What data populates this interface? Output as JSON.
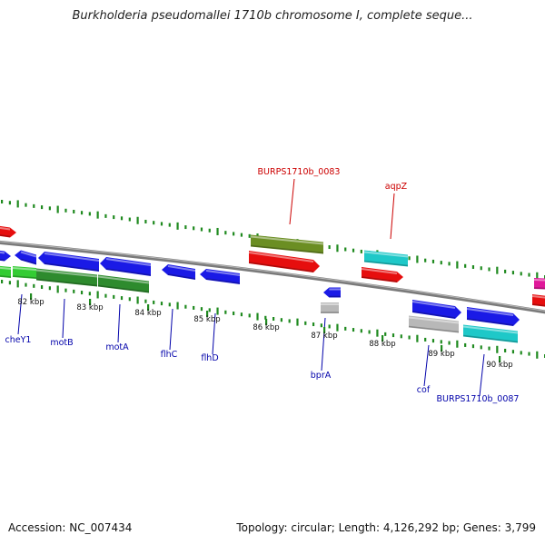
{
  "title": "Burkholderia pseudomallei 1710b chromosome I, complete seque...",
  "footer": {
    "accession": "Accession: NC_007434",
    "summary": "Topology: circular; Length: 4,126,292 bp; Genes: 3,799"
  },
  "colors": {
    "backbone": "#7a7a7a",
    "tick": "#1f8a1f",
    "gene_blue": "#1a1ae6",
    "gene_red": "#e60e0e",
    "gene_green": "#2e8b2e",
    "gene_lightgreen": "#33cc33",
    "gene_olive": "#6b8e23",
    "gene_cyan": "#1ec8c8",
    "gene_gray": "#b8b8b8",
    "gene_magenta": "#e0189a",
    "label_blue": "#0000aa",
    "label_red": "#cc0000"
  },
  "kbp_ticks": [
    "82 kbp",
    "83 kbp",
    "84 kbp",
    "85 kbp",
    "86 kbp",
    "87 kbp",
    "88 kbp",
    "89 kbp",
    "90 kbp"
  ],
  "gene_labels": [
    {
      "text": "cheY1",
      "color": "label_blue"
    },
    {
      "text": "motB",
      "color": "label_blue"
    },
    {
      "text": "motA",
      "color": "label_blue"
    },
    {
      "text": "flhC",
      "color": "label_blue"
    },
    {
      "text": "flhD",
      "color": "label_blue"
    },
    {
      "text": "bprA",
      "color": "label_blue"
    },
    {
      "text": "cof",
      "color": "label_blue"
    },
    {
      "text": "BURPS1710b_0087",
      "color": "label_blue"
    },
    {
      "text": "BURPS1710b_0083",
      "color": "label_red"
    },
    {
      "text": "aqpZ",
      "color": "label_red"
    }
  ]
}
